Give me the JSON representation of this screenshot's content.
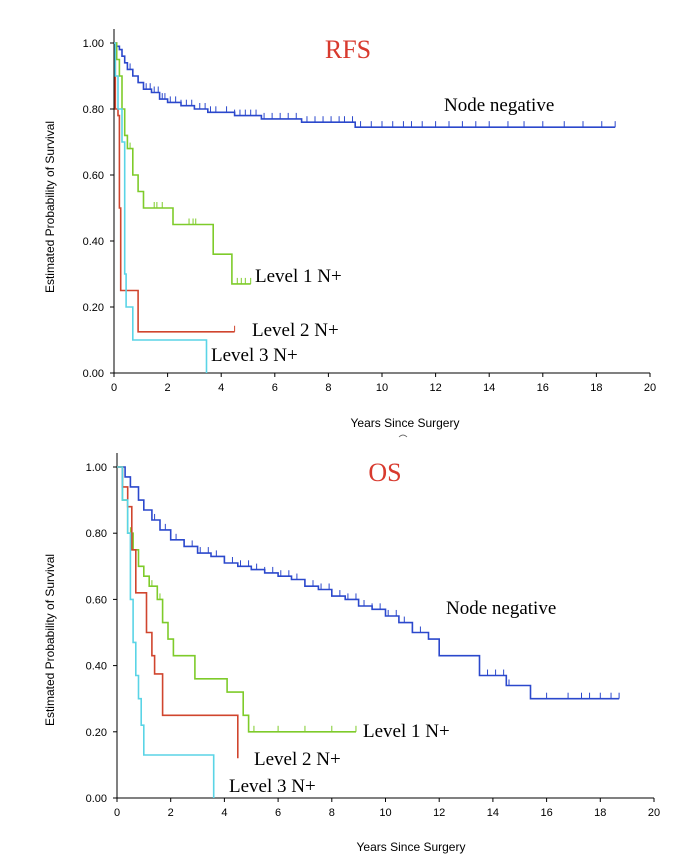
{
  "chart_data": [
    {
      "type": "line",
      "step": true,
      "title": "RFS",
      "title_color": "#d83a2e",
      "xlabel": "Years Since Surgery",
      "ylabel": "Estimated Probability of Survival",
      "xlim": [
        0,
        20
      ],
      "ylim": [
        0,
        1
      ],
      "xticks": [
        "0",
        "2",
        "4",
        "6",
        "8",
        "10",
        "12",
        "14",
        "16",
        "18",
        "20"
      ],
      "yticks": [
        "0.00",
        "0.20",
        "0.40",
        "0.60",
        "0.80",
        "1.00"
      ],
      "series": [
        {
          "name": "Node negative",
          "label": "Node negative",
          "color": "#2b48cc",
          "points": [
            [
              0,
              1.0
            ],
            [
              0.1,
              0.99
            ],
            [
              0.2,
              0.98
            ],
            [
              0.3,
              0.96
            ],
            [
              0.4,
              0.94
            ],
            [
              0.5,
              0.92
            ],
            [
              0.7,
              0.9
            ],
            [
              0.9,
              0.88
            ],
            [
              1.1,
              0.86
            ],
            [
              1.4,
              0.85
            ],
            [
              1.7,
              0.83
            ],
            [
              2.0,
              0.82
            ],
            [
              2.5,
              0.81
            ],
            [
              3.0,
              0.8
            ],
            [
              3.5,
              0.79
            ],
            [
              4.5,
              0.78
            ],
            [
              5.5,
              0.77
            ],
            [
              7.0,
              0.76
            ],
            [
              9.0,
              0.745
            ],
            [
              18.7,
              0.745
            ]
          ],
          "censor": [
            0.6,
            0.9,
            1.2,
            1.35,
            1.5,
            1.65,
            1.8,
            1.9,
            2.1,
            2.3,
            2.5,
            2.7,
            2.9,
            3.2,
            3.4,
            3.6,
            3.8,
            4.2,
            4.5,
            4.7,
            4.9,
            5.1,
            5.3,
            5.6,
            5.9,
            6.2,
            6.5,
            6.8,
            7.2,
            7.5,
            7.8,
            8.1,
            8.4,
            8.6,
            8.9,
            9.2,
            9.6,
            10.0,
            10.4,
            10.8,
            11.1,
            11.5,
            12.0,
            12.5,
            13.0,
            13.5,
            14.0,
            14.7,
            15.3,
            16.0,
            16.8,
            17.5,
            18.2,
            18.7
          ]
        },
        {
          "name": "Level 1 N+",
          "label": "Level 1 N+",
          "color": "#7ecb2a",
          "points": [
            [
              0,
              1.0
            ],
            [
              0.1,
              0.95
            ],
            [
              0.2,
              0.9
            ],
            [
              0.3,
              0.8
            ],
            [
              0.4,
              0.72
            ],
            [
              0.5,
              0.68
            ],
            [
              0.7,
              0.6
            ],
            [
              0.9,
              0.55
            ],
            [
              1.0,
              0.55
            ],
            [
              1.1,
              0.5
            ],
            [
              2.1,
              0.5
            ],
            [
              2.2,
              0.45
            ],
            [
              3.6,
              0.45
            ],
            [
              3.7,
              0.36
            ],
            [
              4.3,
              0.36
            ],
            [
              4.4,
              0.27
            ],
            [
              5.1,
              0.27
            ]
          ],
          "censor": [
            0.6,
            1.5,
            1.6,
            1.8,
            2.8,
            2.95,
            3.05,
            4.6,
            4.75,
            4.9,
            5.1
          ]
        },
        {
          "name": "Level 2 N+",
          "label": "Level 2 N+",
          "color": "#d0452e",
          "points": [
            [
              0,
              1.0
            ],
            [
              0.05,
              0.8
            ],
            [
              0.15,
              0.78
            ],
            [
              0.2,
              0.5
            ],
            [
              0.25,
              0.25
            ],
            [
              0.85,
              0.25
            ],
            [
              0.9,
              0.125
            ],
            [
              4.5,
              0.125
            ]
          ],
          "censor": [
            4.5
          ]
        },
        {
          "name": "Level 3 N+",
          "label": "Level 3 N+",
          "color": "#5ad4e6",
          "points": [
            [
              0,
              1.0
            ],
            [
              0.05,
              0.9
            ],
            [
              0.15,
              0.8
            ],
            [
              0.3,
              0.7
            ],
            [
              0.4,
              0.3
            ],
            [
              0.45,
              0.2
            ],
            [
              0.65,
              0.2
            ],
            [
              0.7,
              0.1
            ],
            [
              3.45,
              0.1
            ],
            [
              3.45,
              0.0
            ]
          ],
          "censor": []
        }
      ]
    },
    {
      "type": "line",
      "step": true,
      "title": "OS",
      "title_color": "#d83a2e",
      "xlabel": "Years Since Surgery",
      "ylabel": "Estimated Probability of Survival",
      "xlim": [
        0,
        20
      ],
      "ylim": [
        0,
        1
      ],
      "xticks": [
        "0",
        "2",
        "4",
        "6",
        "8",
        "10",
        "12",
        "14",
        "16",
        "18",
        "20"
      ],
      "yticks": [
        "0.00",
        "0.20",
        "0.40",
        "0.60",
        "0.80",
        "1.00"
      ],
      "series": [
        {
          "name": "Node negative",
          "label": "Node negative",
          "color": "#2b48cc",
          "points": [
            [
              0,
              1.0
            ],
            [
              0.3,
              0.97
            ],
            [
              0.5,
              0.94
            ],
            [
              0.8,
              0.9
            ],
            [
              1.0,
              0.87
            ],
            [
              1.3,
              0.84
            ],
            [
              1.6,
              0.81
            ],
            [
              2.0,
              0.78
            ],
            [
              2.5,
              0.76
            ],
            [
              3.0,
              0.74
            ],
            [
              3.5,
              0.73
            ],
            [
              4.0,
              0.71
            ],
            [
              4.5,
              0.7
            ],
            [
              5.0,
              0.69
            ],
            [
              5.5,
              0.68
            ],
            [
              6.0,
              0.67
            ],
            [
              6.5,
              0.66
            ],
            [
              7.0,
              0.64
            ],
            [
              7.5,
              0.63
            ],
            [
              8.0,
              0.61
            ],
            [
              8.5,
              0.6
            ],
            [
              9.0,
              0.58
            ],
            [
              9.5,
              0.57
            ],
            [
              10.0,
              0.55
            ],
            [
              10.5,
              0.53
            ],
            [
              11.0,
              0.5
            ],
            [
              11.6,
              0.48
            ],
            [
              12.0,
              0.43
            ],
            [
              13.5,
              0.37
            ],
            [
              14.5,
              0.34
            ],
            [
              15.4,
              0.3
            ],
            [
              18.7,
              0.3
            ]
          ],
          "censor": [
            0.5,
            1.0,
            1.4,
            1.8,
            2.2,
            2.5,
            2.8,
            3.1,
            3.4,
            3.7,
            4.0,
            4.3,
            4.6,
            4.9,
            5.2,
            5.5,
            5.8,
            6.1,
            6.4,
            6.7,
            7.0,
            7.3,
            7.6,
            7.9,
            8.3,
            8.6,
            8.9,
            9.2,
            9.5,
            9.8,
            10.1,
            10.4,
            10.7,
            11.0,
            11.3,
            13.8,
            14.1,
            14.4,
            14.6,
            16.0,
            16.8,
            17.3,
            17.6,
            18.0,
            18.4,
            18.7
          ]
        },
        {
          "name": "Level 1 N+",
          "label": "Level 1 N+",
          "color": "#7ecb2a",
          "points": [
            [
              0,
              1.0
            ],
            [
              0.2,
              0.9
            ],
            [
              0.4,
              0.8
            ],
            [
              0.6,
              0.75
            ],
            [
              0.8,
              0.7
            ],
            [
              1.0,
              0.67
            ],
            [
              1.2,
              0.64
            ],
            [
              1.5,
              0.6
            ],
            [
              1.7,
              0.53
            ],
            [
              1.9,
              0.48
            ],
            [
              2.1,
              0.43
            ],
            [
              2.8,
              0.43
            ],
            [
              2.9,
              0.36
            ],
            [
              4.0,
              0.36
            ],
            [
              4.1,
              0.32
            ],
            [
              4.6,
              0.32
            ],
            [
              4.7,
              0.25
            ],
            [
              4.9,
              0.2
            ],
            [
              8.9,
              0.2
            ]
          ],
          "censor": [
            0.5,
            1.3,
            1.6,
            5.1,
            6.0,
            7.0,
            8.0,
            8.9
          ]
        },
        {
          "name": "Level 2 N+",
          "label": "Level 2 N+",
          "color": "#d0452e",
          "points": [
            [
              0,
              1.0
            ],
            [
              0.2,
              0.94
            ],
            [
              0.4,
              0.88
            ],
            [
              0.55,
              0.75
            ],
            [
              0.7,
              0.62
            ],
            [
              1.0,
              0.62
            ],
            [
              1.1,
              0.5
            ],
            [
              1.3,
              0.43
            ],
            [
              1.4,
              0.375
            ],
            [
              1.6,
              0.375
            ],
            [
              1.7,
              0.25
            ],
            [
              4.5,
              0.25
            ],
            [
              4.5,
              0.12
            ]
          ],
          "censor": [
            1.3
          ]
        },
        {
          "name": "Level 3 N+",
          "label": "Level 3 N+",
          "color": "#5ad4e6",
          "points": [
            [
              0,
              1.0
            ],
            [
              0.2,
              0.9
            ],
            [
              0.4,
              0.8
            ],
            [
              0.5,
              0.6
            ],
            [
              0.6,
              0.47
            ],
            [
              0.7,
              0.37
            ],
            [
              0.8,
              0.3
            ],
            [
              0.9,
              0.22
            ],
            [
              1.0,
              0.13
            ],
            [
              3.6,
              0.13
            ],
            [
              3.6,
              0.0
            ]
          ],
          "censor": [
            0.2
          ]
        }
      ]
    }
  ]
}
